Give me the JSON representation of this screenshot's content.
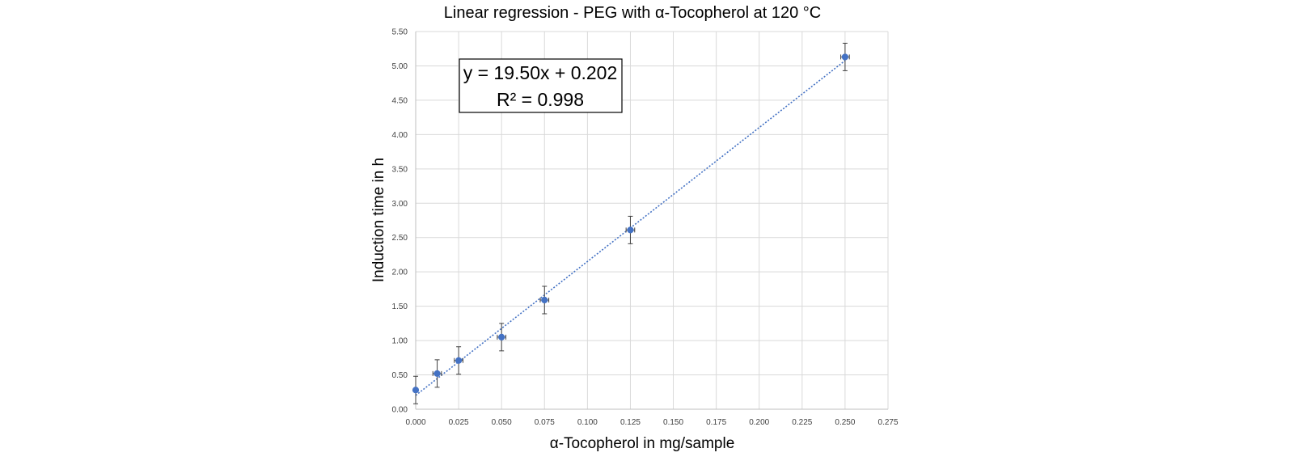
{
  "chart_data": {
    "type": "scatter",
    "title": "Linear regression - PEG with α-Tocopherol at 120 °C",
    "xlabel": "α-Tocopherol in mg/sample",
    "ylabel": "Induction time in h",
    "xlim": [
      0,
      0.275
    ],
    "ylim": [
      0,
      5.5
    ],
    "x_ticks": [
      "0.000",
      "0.025",
      "0.050",
      "0.075",
      "0.100",
      "0.125",
      "0.150",
      "0.175",
      "0.200",
      "0.225",
      "0.250",
      "0.275"
    ],
    "y_ticks": [
      "0.00",
      "0.50",
      "1.00",
      "1.50",
      "2.00",
      "2.50",
      "3.00",
      "3.50",
      "4.00",
      "4.50",
      "5.00",
      "5.50"
    ],
    "grid": true,
    "series": [
      {
        "x": [
          0.0,
          0.0125,
          0.025,
          0.05,
          0.075,
          0.125,
          0.25
        ],
        "y": [
          0.28,
          0.52,
          0.71,
          1.05,
          1.59,
          2.61,
          5.13
        ],
        "y_error": [
          0.2,
          0.2,
          0.2,
          0.2,
          0.2,
          0.2,
          0.2
        ],
        "x_error": [
          0.0,
          0.0025,
          0.0025,
          0.0025,
          0.0025,
          0.0025,
          0.0025
        ]
      }
    ],
    "trendline": {
      "slope": 19.5,
      "intercept": 0.202,
      "style": "dotted",
      "equation_label": "y = 19.50x + 0.202",
      "r2_label": "R² = 0.998"
    },
    "colors": {
      "marker": "#4472c4",
      "trendline": "#4472c4",
      "error_bar": "#404040",
      "grid": "#d9d9d9"
    }
  }
}
